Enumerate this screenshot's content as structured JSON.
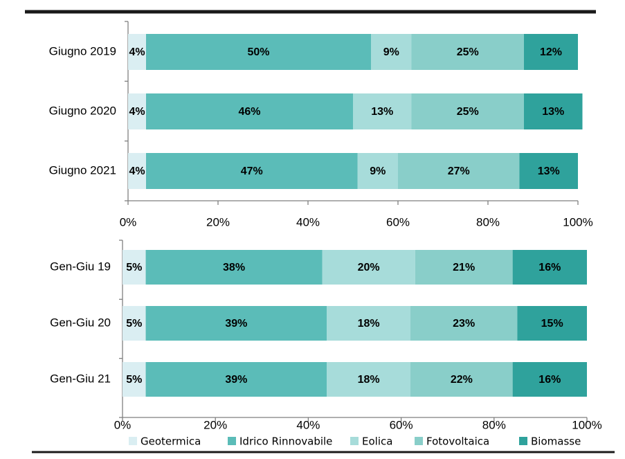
{
  "chart_data": [
    {
      "type": "bar",
      "orientation": "horizontal",
      "stacked": true,
      "percent": true,
      "categories": [
        "Giugno 2019",
        "Giugno 2020",
        "Giugno 2021"
      ],
      "series": [
        {
          "name": "Geotermica",
          "values": [
            4,
            4,
            4
          ]
        },
        {
          "name": "Idrico Rinnovabile",
          "values": [
            50,
            46,
            47
          ]
        },
        {
          "name": "Eolica",
          "values": [
            9,
            13,
            9
          ]
        },
        {
          "name": "Fotovoltaica",
          "values": [
            25,
            25,
            27
          ]
        },
        {
          "name": "Biomasse",
          "values": [
            12,
            13,
            13
          ]
        }
      ],
      "xlim": [
        0,
        100
      ],
      "xticks": [
        "0%",
        "20%",
        "40%",
        "60%",
        "80%",
        "100%"
      ],
      "grid": false
    },
    {
      "type": "bar",
      "orientation": "horizontal",
      "stacked": true,
      "percent": true,
      "categories": [
        "Gen-Giu 19",
        "Gen-Giu 20",
        "Gen-Giu 21"
      ],
      "series": [
        {
          "name": "Geotermica",
          "values": [
            5,
            5,
            5
          ]
        },
        {
          "name": "Idrico Rinnovabile",
          "values": [
            38,
            39,
            39
          ]
        },
        {
          "name": "Eolica",
          "values": [
            20,
            18,
            18
          ]
        },
        {
          "name": "Fotovoltaica",
          "values": [
            21,
            23,
            22
          ]
        },
        {
          "name": "Biomasse",
          "values": [
            16,
            15,
            16
          ]
        }
      ],
      "xlim": [
        0,
        100
      ],
      "xticks": [
        "0%",
        "20%",
        "40%",
        "60%",
        "80%",
        "100%"
      ],
      "grid": false,
      "legend": "bottom"
    }
  ],
  "legend": {
    "items": [
      {
        "name": "Geotermica",
        "color": "#daeef2"
      },
      {
        "name": "Idrico Rinnovabile",
        "color": "#5bbcb8"
      },
      {
        "name": "Eolica",
        "color": "#a7dcda"
      },
      {
        "name": "Fotovoltaica",
        "color": "#89cec9"
      },
      {
        "name": "Biomasse",
        "color": "#2fa29c"
      }
    ]
  }
}
